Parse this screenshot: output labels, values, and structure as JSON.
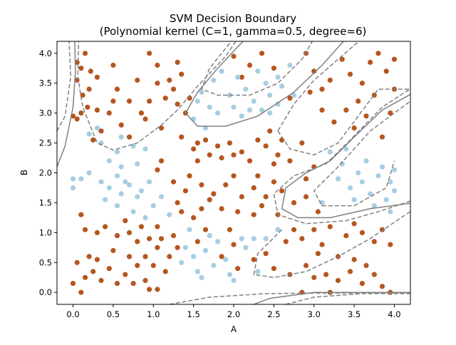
{
  "chart_data": {
    "type": "scatter",
    "title": "SVM Decision Boundary",
    "subtitle": "(Polynomial kernel (C=1, gamma=0.5, degree=6)",
    "xlabel": "A",
    "ylabel": "B",
    "xlim": [
      -0.2,
      4.2
    ],
    "ylim": [
      -0.2,
      4.2
    ],
    "x_ticks": [
      "0.0",
      "0.5",
      "1.0",
      "1.5",
      "2.0",
      "2.5",
      "3.0",
      "3.5",
      "4.0"
    ],
    "y_ticks": [
      "0.0",
      "0.5",
      "1.0",
      "1.5",
      "2.0",
      "2.5",
      "3.0",
      "3.5",
      "4.0"
    ],
    "grid": false,
    "legend": "none",
    "colors": {
      "class_brown": "#b5561f",
      "class_blue": "#a6cee3",
      "boundary": "#808080"
    },
    "series": [
      {
        "points": [
          [
            0.05,
            3.55
          ],
          [
            0.12,
            3.3
          ],
          [
            0.1,
            3.0
          ],
          [
            0.05,
            2.9
          ],
          [
            0.0,
            2.95
          ],
          [
            0.18,
            3.1
          ],
          [
            0.3,
            3.05
          ],
          [
            0.2,
            3.4
          ],
          [
            0.3,
            3.6
          ],
          [
            0.22,
            3.7
          ],
          [
            0.05,
            3.85
          ],
          [
            0.15,
            4.0
          ],
          [
            0.5,
            3.8
          ],
          [
            0.55,
            3.4
          ],
          [
            0.5,
            3.2
          ],
          [
            0.45,
            3.0
          ],
          [
            0.6,
            2.8
          ],
          [
            0.25,
            2.55
          ],
          [
            0.35,
            2.7
          ],
          [
            0.7,
            2.6
          ],
          [
            0.85,
            3.0
          ],
          [
            0.95,
            3.2
          ],
          [
            0.8,
            3.55
          ],
          [
            1.05,
            3.8
          ],
          [
            0.95,
            4.0
          ],
          [
            1.05,
            3.5
          ],
          [
            1.2,
            3.55
          ],
          [
            1.35,
            3.65
          ],
          [
            1.25,
            3.4
          ],
          [
            1.3,
            3.15
          ],
          [
            1.15,
            3.25
          ],
          [
            1.3,
            3.85
          ],
          [
            0.9,
            2.9
          ],
          [
            1.1,
            2.75
          ],
          [
            1.45,
            3.25
          ],
          [
            1.4,
            3.0
          ],
          [
            0.1,
            3.75
          ],
          [
            0.7,
            3.2
          ],
          [
            1.35,
            2.6
          ],
          [
            1.55,
            2.5
          ],
          [
            1.5,
            2.4
          ],
          [
            1.65,
            2.55
          ],
          [
            1.8,
            2.45
          ],
          [
            1.7,
            2.3
          ],
          [
            1.55,
            2.2
          ],
          [
            1.85,
            2.25
          ],
          [
            1.95,
            2.5
          ],
          [
            2.1,
            2.35
          ],
          [
            2.3,
            2.55
          ],
          [
            2.4,
            2.45
          ],
          [
            2.55,
            2.3
          ],
          [
            2.7,
            2.2
          ],
          [
            2.6,
            2.55
          ],
          [
            2.85,
            2.5
          ],
          [
            2.5,
            2.15
          ],
          [
            2.2,
            2.2
          ],
          [
            2.0,
            2.3
          ],
          [
            2.45,
            2.7
          ],
          [
            1.1,
            2.2
          ],
          [
            1.05,
            2.05
          ],
          [
            1.25,
            1.85
          ],
          [
            1.4,
            1.7
          ],
          [
            1.45,
            1.95
          ],
          [
            1.6,
            1.8
          ],
          [
            1.75,
            1.65
          ],
          [
            1.7,
            1.55
          ],
          [
            1.9,
            1.8
          ],
          [
            2.0,
            1.95
          ],
          [
            2.1,
            1.6
          ],
          [
            2.25,
            1.75
          ],
          [
            2.3,
            1.95
          ],
          [
            2.5,
            1.85
          ],
          [
            2.4,
            1.6
          ],
          [
            2.6,
            1.7
          ],
          [
            2.75,
            1.5
          ],
          [
            2.9,
            1.9
          ],
          [
            3.0,
            2.1
          ],
          [
            2.9,
            1.6
          ],
          [
            3.05,
            1.35
          ],
          [
            1.3,
            1.5
          ],
          [
            1.35,
            1.35
          ],
          [
            1.5,
            1.25
          ],
          [
            1.6,
            1.4
          ],
          [
            1.85,
            1.4
          ],
          [
            2.05,
            1.35
          ],
          [
            2.25,
            1.3
          ],
          [
            2.55,
            1.3
          ],
          [
            2.35,
            1.45
          ],
          [
            0.1,
            1.3
          ],
          [
            0.15,
            1.05
          ],
          [
            0.3,
            1.0
          ],
          [
            0.4,
            1.1
          ],
          [
            0.55,
            0.95
          ],
          [
            0.65,
            1.2
          ],
          [
            0.7,
            1.0
          ],
          [
            0.85,
            1.1
          ],
          [
            0.8,
            0.85
          ],
          [
            0.95,
            0.9
          ],
          [
            1.05,
            1.1
          ],
          [
            1.1,
            0.9
          ],
          [
            1.25,
            0.95
          ],
          [
            1.05,
            0.75
          ],
          [
            0.9,
            0.6
          ],
          [
            0.8,
            0.45
          ],
          [
            0.65,
            0.3
          ],
          [
            0.55,
            0.15
          ],
          [
            0.45,
            0.4
          ],
          [
            0.3,
            0.55
          ],
          [
            0.25,
            0.35
          ],
          [
            0.15,
            0.25
          ],
          [
            0.1,
            0.0
          ],
          [
            0.05,
            0.5
          ],
          [
            0.0,
            0.15
          ],
          [
            0.2,
            0.6
          ],
          [
            0.35,
            0.2
          ],
          [
            0.5,
            0.7
          ],
          [
            0.7,
            0.6
          ],
          [
            0.75,
            0.15
          ],
          [
            0.9,
            0.2
          ],
          [
            1.0,
            0.45
          ],
          [
            1.05,
            0.05
          ],
          [
            1.15,
            0.35
          ],
          [
            1.2,
            0.6
          ],
          [
            1.3,
            0.75
          ],
          [
            0.95,
            0.05
          ],
          [
            1.55,
            0.85
          ],
          [
            1.65,
            1.05
          ],
          [
            1.85,
            0.6
          ],
          [
            1.95,
            1.05
          ],
          [
            2.0,
            0.8
          ],
          [
            2.05,
            0.4
          ],
          [
            2.25,
            0.55
          ],
          [
            2.4,
            0.65
          ],
          [
            2.5,
            0.4
          ],
          [
            2.65,
            0.85
          ],
          [
            2.75,
            1.05
          ],
          [
            2.85,
            0.9
          ],
          [
            3.0,
            1.05
          ],
          [
            3.1,
            0.8
          ],
          [
            3.2,
            1.1
          ],
          [
            3.3,
            0.6
          ],
          [
            3.4,
            0.95
          ],
          [
            3.5,
            1.15
          ],
          [
            3.6,
            1.0
          ],
          [
            3.75,
            0.85
          ],
          [
            3.85,
            1.05
          ],
          [
            3.95,
            0.8
          ],
          [
            2.9,
            0.45
          ],
          [
            3.0,
            0.25
          ],
          [
            3.15,
            0.3
          ],
          [
            3.3,
            0.2
          ],
          [
            3.45,
            0.35
          ],
          [
            3.6,
            0.15
          ],
          [
            3.75,
            0.3
          ],
          [
            3.85,
            0.1
          ],
          [
            3.95,
            0.0
          ],
          [
            3.5,
            0.55
          ],
          [
            2.85,
            0.0
          ],
          [
            3.05,
            0.65
          ],
          [
            3.65,
            0.45
          ],
          [
            2.7,
            0.3
          ],
          [
            3.2,
            0.0
          ],
          [
            2.0,
            3.95
          ],
          [
            2.2,
            3.8
          ],
          [
            2.35,
            4.0
          ],
          [
            2.1,
            3.6
          ],
          [
            2.5,
            3.75
          ],
          [
            2.9,
            4.0
          ],
          [
            3.0,
            3.7
          ],
          [
            3.1,
            3.4
          ],
          [
            3.2,
            3.55
          ],
          [
            3.35,
            3.9
          ],
          [
            3.45,
            3.65
          ],
          [
            3.6,
            3.5
          ],
          [
            3.7,
            3.85
          ],
          [
            3.8,
            4.0
          ],
          [
            3.9,
            3.7
          ],
          [
            4.0,
            3.9
          ],
          [
            3.55,
            3.2
          ],
          [
            3.75,
            3.3
          ],
          [
            3.95,
            3.0
          ],
          [
            3.4,
            3.05
          ],
          [
            3.25,
            2.85
          ],
          [
            3.1,
            3.05
          ],
          [
            2.95,
            3.35
          ],
          [
            2.7,
            3.25
          ],
          [
            3.65,
            2.95
          ],
          [
            3.85,
            2.6
          ],
          [
            3.5,
            2.75
          ],
          [
            4.0,
            3.4
          ]
        ]
      },
      {
        "points": [
          [
            0.2,
            2.65
          ],
          [
            0.35,
            2.5
          ],
          [
            0.55,
            2.35
          ],
          [
            0.6,
            2.6
          ],
          [
            0.75,
            2.45
          ],
          [
            0.9,
            2.4
          ],
          [
            0.45,
            2.2
          ],
          [
            0.6,
            2.1
          ],
          [
            0.8,
            2.15
          ],
          [
            0.3,
            2.75
          ],
          [
            0.0,
            1.9
          ],
          [
            0.1,
            1.9
          ],
          [
            0.0,
            1.75
          ],
          [
            0.2,
            2.0
          ],
          [
            0.35,
            1.85
          ],
          [
            0.45,
            1.75
          ],
          [
            0.55,
            1.95
          ],
          [
            0.7,
            1.8
          ],
          [
            0.85,
            1.7
          ],
          [
            0.95,
            1.85
          ],
          [
            0.4,
            1.55
          ],
          [
            0.6,
            1.65
          ],
          [
            0.75,
            1.35
          ],
          [
            0.9,
            1.25
          ],
          [
            1.0,
            1.45
          ],
          [
            1.1,
            1.6
          ],
          [
            1.2,
            1.3
          ],
          [
            0.55,
            1.45
          ],
          [
            0.8,
            1.6
          ],
          [
            0.65,
            1.85
          ],
          [
            1.5,
            2.9
          ],
          [
            1.65,
            2.75
          ],
          [
            1.8,
            3.0
          ],
          [
            2.0,
            3.1
          ],
          [
            2.1,
            2.95
          ],
          [
            2.25,
            3.2
          ],
          [
            2.35,
            3.05
          ],
          [
            2.45,
            3.3
          ],
          [
            2.55,
            3.15
          ],
          [
            2.6,
            3.45
          ],
          [
            2.75,
            3.3
          ],
          [
            2.4,
            3.5
          ],
          [
            2.15,
            3.4
          ],
          [
            1.95,
            3.3
          ],
          [
            1.75,
            3.55
          ],
          [
            1.6,
            3.35
          ],
          [
            1.85,
            3.7
          ],
          [
            2.05,
            3.6
          ],
          [
            2.3,
            3.7
          ],
          [
            2.55,
            3.6
          ],
          [
            2.7,
            3.8
          ],
          [
            1.7,
            3.1
          ],
          [
            1.55,
            3.2
          ],
          [
            2.2,
            3.05
          ],
          [
            2.45,
            3.0
          ],
          [
            1.35,
            0.5
          ],
          [
            1.4,
            0.75
          ],
          [
            1.5,
            0.6
          ],
          [
            1.55,
            0.35
          ],
          [
            1.6,
            0.25
          ],
          [
            1.75,
            0.45
          ],
          [
            1.8,
            0.85
          ],
          [
            1.9,
            0.55
          ],
          [
            2.0,
            0.2
          ],
          [
            2.15,
            0.75
          ],
          [
            2.25,
            0.9
          ],
          [
            2.3,
            0.35
          ],
          [
            2.4,
            0.9
          ],
          [
            2.55,
            1.05
          ],
          [
            2.1,
            0.9
          ],
          [
            1.45,
            1.05
          ],
          [
            1.65,
            0.7
          ],
          [
            1.95,
            0.3
          ],
          [
            1.7,
            0.95
          ],
          [
            3.2,
            2.35
          ],
          [
            3.35,
            2.15
          ],
          [
            3.3,
            1.9
          ],
          [
            3.45,
            1.75
          ],
          [
            3.55,
            2.0
          ],
          [
            3.6,
            1.85
          ],
          [
            3.7,
            1.65
          ],
          [
            3.8,
            1.95
          ],
          [
            3.85,
            2.1
          ],
          [
            3.95,
            1.85
          ],
          [
            4.0,
            2.05
          ],
          [
            3.5,
            1.55
          ],
          [
            3.75,
            1.45
          ],
          [
            3.9,
            1.55
          ],
          [
            3.65,
            2.2
          ],
          [
            3.95,
            1.35
          ],
          [
            3.1,
            1.5
          ],
          [
            3.4,
            2.4
          ],
          [
            4.0,
            1.7
          ]
        ]
      }
    ]
  }
}
